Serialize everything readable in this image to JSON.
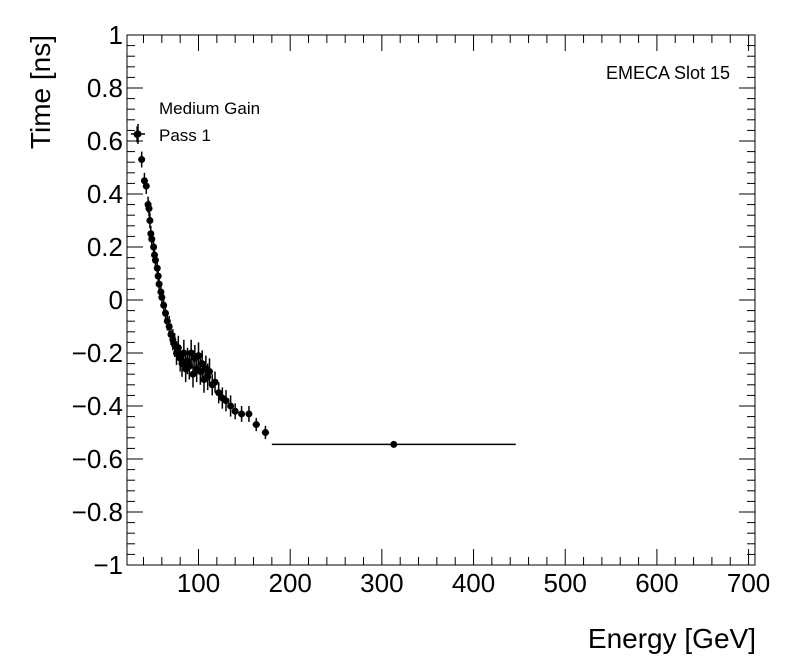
{
  "chart_data": {
    "type": "scatter",
    "title": "",
    "xlabel": "Energy [GeV]",
    "ylabel": "Time [ns]",
    "xlim": [
      22,
      707
    ],
    "ylim": [
      -1,
      1
    ],
    "xticks": [
      100,
      200,
      300,
      400,
      500,
      600,
      700
    ],
    "yticks": [
      -1,
      -0.8,
      -0.6,
      -0.4,
      -0.2,
      0,
      0.2,
      0.4,
      0.6,
      0.8,
      1
    ],
    "ytick_labels": [
      "−1",
      "−0.8",
      "−0.6",
      "−0.4",
      "−0.2",
      "0",
      "0.2",
      "0.4",
      "0.6",
      "0.8",
      "1"
    ],
    "annotations": {
      "slot": "EMECA Slot 15",
      "gain": "Medium Gain",
      "pass": "Pass 1"
    },
    "series": [
      {
        "name": "Pass 1",
        "points": [
          {
            "x": 33,
            "y": 0.625,
            "ex": 2,
            "ey": 0.03
          },
          {
            "x": 38,
            "y": 0.53,
            "ex": 1.5,
            "ey": 0.03
          },
          {
            "x": 41,
            "y": 0.45,
            "ex": 1.5,
            "ey": 0.03
          },
          {
            "x": 43,
            "y": 0.43,
            "ex": 1.5,
            "ey": 0.03
          },
          {
            "x": 45,
            "y": 0.36,
            "ex": 1.5,
            "ey": 0.03
          },
          {
            "x": 46,
            "y": 0.345,
            "ex": 1.5,
            "ey": 0.03
          },
          {
            "x": 47,
            "y": 0.3,
            "ex": 1.5,
            "ey": 0.03
          },
          {
            "x": 48,
            "y": 0.25,
            "ex": 1.5,
            "ey": 0.03
          },
          {
            "x": 49,
            "y": 0.23,
            "ex": 1.5,
            "ey": 0.03
          },
          {
            "x": 51,
            "y": 0.2,
            "ex": 1.5,
            "ey": 0.03
          },
          {
            "x": 52,
            "y": 0.17,
            "ex": 1.5,
            "ey": 0.03
          },
          {
            "x": 53,
            "y": 0.15,
            "ex": 1.5,
            "ey": 0.03
          },
          {
            "x": 55,
            "y": 0.12,
            "ex": 1.5,
            "ey": 0.03
          },
          {
            "x": 56,
            "y": 0.09,
            "ex": 1.5,
            "ey": 0.03
          },
          {
            "x": 57,
            "y": 0.06,
            "ex": 1.5,
            "ey": 0.03
          },
          {
            "x": 59,
            "y": 0.03,
            "ex": 1.5,
            "ey": 0.03
          },
          {
            "x": 60,
            "y": 0.01,
            "ex": 1.5,
            "ey": 0.03
          },
          {
            "x": 62,
            "y": -0.02,
            "ex": 1.5,
            "ey": 0.035
          },
          {
            "x": 64,
            "y": -0.05,
            "ex": 1.5,
            "ey": 0.035
          },
          {
            "x": 66,
            "y": -0.08,
            "ex": 1.5,
            "ey": 0.035
          },
          {
            "x": 68,
            "y": -0.1,
            "ex": 1.5,
            "ey": 0.04
          },
          {
            "x": 70,
            "y": -0.13,
            "ex": 1.5,
            "ey": 0.04
          },
          {
            "x": 72,
            "y": -0.15,
            "ex": 1.5,
            "ey": 0.04
          },
          {
            "x": 74,
            "y": -0.17,
            "ex": 1.5,
            "ey": 0.045
          },
          {
            "x": 76,
            "y": -0.2,
            "ex": 1.5,
            "ey": 0.045
          },
          {
            "x": 78,
            "y": -0.18,
            "ex": 1.5,
            "ey": 0.045
          },
          {
            "x": 80,
            "y": -0.22,
            "ex": 1.5,
            "ey": 0.05
          },
          {
            "x": 82,
            "y": -0.24,
            "ex": 1.5,
            "ey": 0.05
          },
          {
            "x": 84,
            "y": -0.2,
            "ex": 1.5,
            "ey": 0.05
          },
          {
            "x": 86,
            "y": -0.26,
            "ex": 1.5,
            "ey": 0.05
          },
          {
            "x": 88,
            "y": -0.23,
            "ex": 1.5,
            "ey": 0.05
          },
          {
            "x": 90,
            "y": -0.25,
            "ex": 1.5,
            "ey": 0.05
          },
          {
            "x": 92,
            "y": -0.2,
            "ex": 1.5,
            "ey": 0.05
          },
          {
            "x": 94,
            "y": -0.28,
            "ex": 1.5,
            "ey": 0.05
          },
          {
            "x": 96,
            "y": -0.22,
            "ex": 1.5,
            "ey": 0.05
          },
          {
            "x": 98,
            "y": -0.26,
            "ex": 1.5,
            "ey": 0.05
          },
          {
            "x": 100,
            "y": -0.21,
            "ex": 1.5,
            "ey": 0.05
          },
          {
            "x": 102,
            "y": -0.27,
            "ex": 1.5,
            "ey": 0.05
          },
          {
            "x": 104,
            "y": -0.24,
            "ex": 1.5,
            "ey": 0.05
          },
          {
            "x": 106,
            "y": -0.3,
            "ex": 1.5,
            "ey": 0.05
          },
          {
            "x": 108,
            "y": -0.26,
            "ex": 1.5,
            "ey": 0.05
          },
          {
            "x": 110,
            "y": -0.29,
            "ex": 1.5,
            "ey": 0.05
          },
          {
            "x": 112,
            "y": -0.27,
            "ex": 1.5,
            "ey": 0.05
          },
          {
            "x": 115,
            "y": -0.32,
            "ex": 2,
            "ey": 0.04
          },
          {
            "x": 118,
            "y": -0.31,
            "ex": 2,
            "ey": 0.04
          },
          {
            "x": 122,
            "y": -0.35,
            "ex": 2,
            "ey": 0.04
          },
          {
            "x": 126,
            "y": -0.37,
            "ex": 2,
            "ey": 0.04
          },
          {
            "x": 130,
            "y": -0.38,
            "ex": 2,
            "ey": 0.04
          },
          {
            "x": 135,
            "y": -0.4,
            "ex": 2,
            "ey": 0.04
          },
          {
            "x": 140,
            "y": -0.42,
            "ex": 2.5,
            "ey": 0.03
          },
          {
            "x": 147,
            "y": -0.43,
            "ex": 3,
            "ey": 0.03
          },
          {
            "x": 155,
            "y": -0.43,
            "ex": 3,
            "ey": 0.03
          },
          {
            "x": 163,
            "y": -0.47,
            "ex": 4,
            "ey": 0.025
          },
          {
            "x": 173,
            "y": -0.5,
            "ex": 4,
            "ey": 0.025
          },
          {
            "x": 313,
            "y": -0.545,
            "ex": 133,
            "ey": 0.01
          }
        ]
      }
    ]
  }
}
